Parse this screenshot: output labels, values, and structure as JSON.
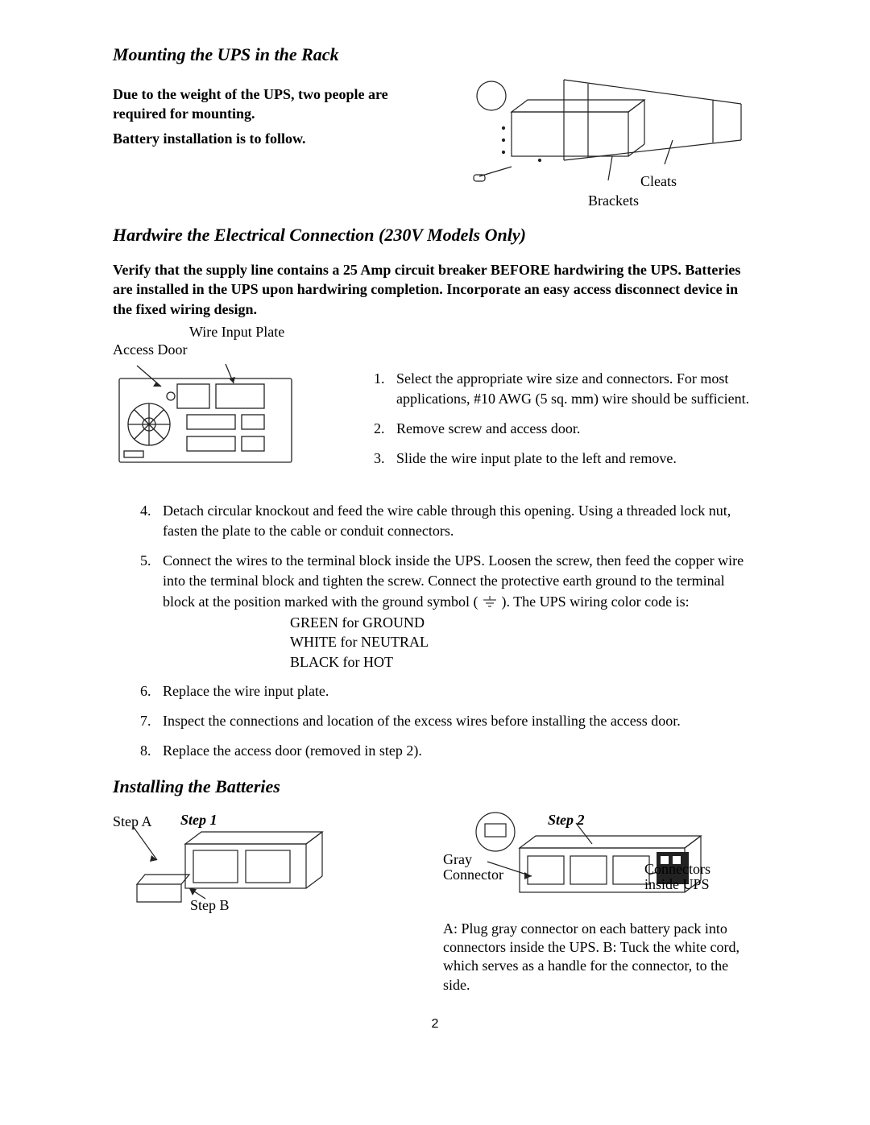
{
  "section1": {
    "heading": "Mounting the UPS in the Rack",
    "p1": "Due to the weight of the UPS, two people are required for mounting.",
    "p2": "Battery installation is to follow.",
    "label_brackets": "Brackets",
    "label_cleats": "Cleats"
  },
  "section2": {
    "heading": "Hardwire the Electrical Connection (230V Models Only)",
    "intro": "Verify that the supply line contains a 25 Amp circuit breaker BEFORE hardwiring the UPS.  Batteries are installed in the UPS upon hardwiring completion.  Incorporate an easy access disconnect device in the fixed wiring design.",
    "label_wire_input_plate": "Wire Input Plate",
    "label_access_door": "Access Door",
    "steps_top": {
      "i1": "Select the appropriate wire size and connectors.  For most applications, #10 AWG (5 sq. mm) wire should be sufficient.",
      "i2": "Remove screw and access door.",
      "i3": "Slide the wire input plate to the left and remove."
    },
    "steps_rest": {
      "i4": "Detach circular knockout and feed the wire cable through this opening. Using a threaded lock nut, fasten the plate to the cable or conduit connectors.",
      "i5a": "Connect the wires to the terminal block inside the UPS.  Loosen the screw, then feed the copper wire into the terminal block and tighten the screw.  Connect the protective earth ground to the terminal block at the position marked with the ground symbol (",
      "i5b": ").  The UPS wiring color code is:",
      "i6": "Replace the wire input plate.",
      "i7": "Inspect the connections and location of the excess wires before installing the access door.",
      "i8": "Replace the access door (removed in step 2)."
    },
    "color_code": {
      "l1": "GREEN for GROUND",
      "l2": "WHITE for NEUTRAL",
      "l3": "BLACK for HOT"
    }
  },
  "section3": {
    "heading": "Installing the Batteries",
    "step1": "Step 1",
    "step2": "Step 2",
    "stepA": "Step A",
    "stepB": "Step B",
    "gray_connector": "Gray Connector",
    "connectors_inside": "Connectors inside UPS",
    "caption": "A: Plug gray connector on each battery pack into connectors inside the UPS. B: Tuck the white cord, which serves as a handle for the connector, to the side."
  },
  "page_number": "2",
  "colors": {
    "text": "#000000",
    "background": "#ffffff",
    "line": "#222222"
  }
}
